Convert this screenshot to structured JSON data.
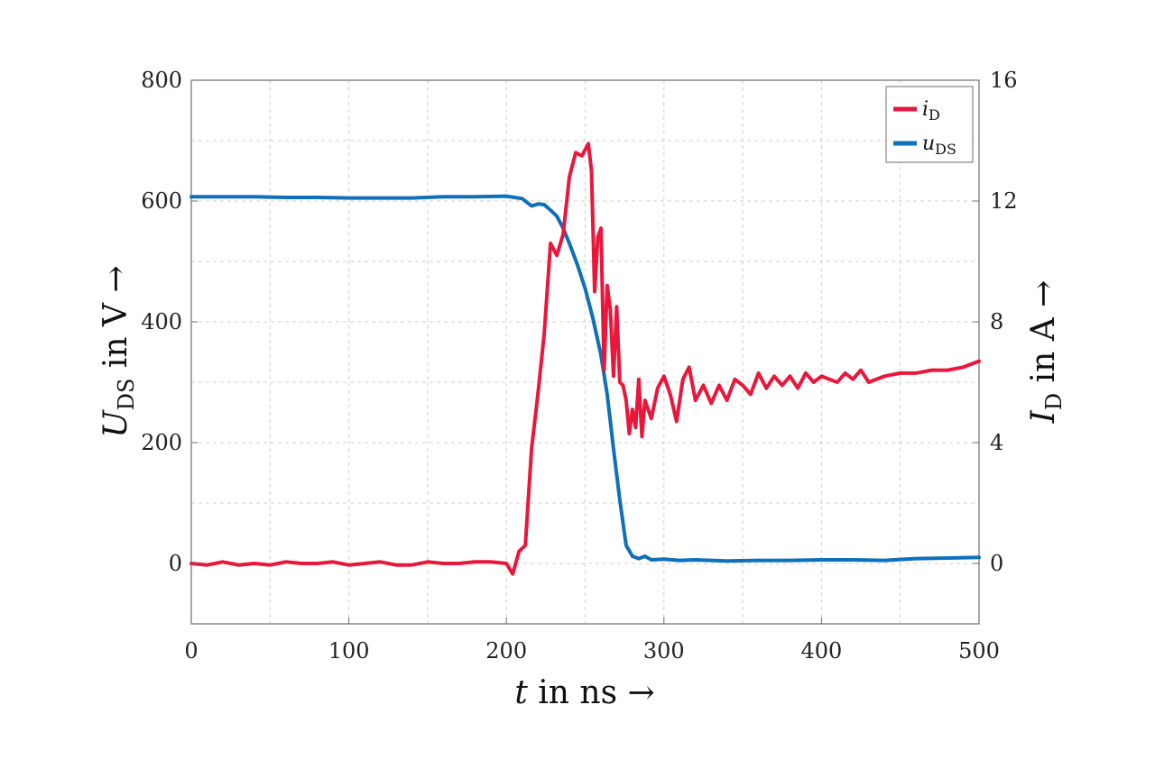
{
  "chart_data": {
    "type": "line",
    "xlabel": {
      "var": "t",
      "rest": " in ns →"
    },
    "ylabel_left": {
      "var": "U",
      "sub": "DS",
      "rest": " in V →"
    },
    "ylabel_right": {
      "var": "I",
      "sub": "D",
      "rest": " in A →"
    },
    "xlim": [
      0,
      500
    ],
    "ylim_left": [
      -100,
      800
    ],
    "ylim_right": [
      -2,
      16
    ],
    "x_ticks": [
      "0",
      "100",
      "200",
      "300",
      "400",
      "500"
    ],
    "y_left_ticks": [
      "0",
      "200",
      "400",
      "600",
      "800"
    ],
    "y_right_ticks": [
      "0",
      "4",
      "8",
      "12",
      "16"
    ],
    "grid": true,
    "legend_placement": "top-right",
    "series": [
      {
        "name": "i",
        "name_sub": "D",
        "axis": "right",
        "color": "#e8173c",
        "points": [
          [
            0,
            0.0
          ],
          [
            10,
            -0.05
          ],
          [
            20,
            0.05
          ],
          [
            30,
            -0.05
          ],
          [
            40,
            0.0
          ],
          [
            50,
            -0.05
          ],
          [
            60,
            0.05
          ],
          [
            70,
            0.0
          ],
          [
            80,
            0.0
          ],
          [
            90,
            0.05
          ],
          [
            100,
            -0.05
          ],
          [
            110,
            0.0
          ],
          [
            120,
            0.05
          ],
          [
            130,
            -0.05
          ],
          [
            140,
            -0.05
          ],
          [
            150,
            0.05
          ],
          [
            160,
            0.0
          ],
          [
            170,
            0.0
          ],
          [
            180,
            0.05
          ],
          [
            190,
            0.05
          ],
          [
            200,
            0.0
          ],
          [
            204,
            -0.35
          ],
          [
            208,
            0.4
          ],
          [
            212,
            0.6
          ],
          [
            216,
            3.8
          ],
          [
            220,
            5.6
          ],
          [
            224,
            7.6
          ],
          [
            228,
            10.6
          ],
          [
            232,
            10.2
          ],
          [
            236,
            10.9
          ],
          [
            240,
            12.8
          ],
          [
            244,
            13.6
          ],
          [
            248,
            13.5
          ],
          [
            252,
            13.9
          ],
          [
            254,
            13.0
          ],
          [
            256,
            9.0
          ],
          [
            258,
            10.8
          ],
          [
            260,
            11.1
          ],
          [
            262,
            6.4
          ],
          [
            264,
            9.2
          ],
          [
            266,
            8.4
          ],
          [
            268,
            6.2
          ],
          [
            270,
            8.5
          ],
          [
            272,
            6.0
          ],
          [
            274,
            5.9
          ],
          [
            276,
            5.4
          ],
          [
            278,
            4.3
          ],
          [
            280,
            5.1
          ],
          [
            282,
            4.5
          ],
          [
            284,
            6.1
          ],
          [
            286,
            4.2
          ],
          [
            288,
            5.4
          ],
          [
            292,
            4.8
          ],
          [
            296,
            5.8
          ],
          [
            300,
            6.2
          ],
          [
            304,
            5.6
          ],
          [
            308,
            4.7
          ],
          [
            312,
            6.1
          ],
          [
            316,
            6.5
          ],
          [
            320,
            5.4
          ],
          [
            325,
            5.9
          ],
          [
            330,
            5.3
          ],
          [
            335,
            5.9
          ],
          [
            340,
            5.4
          ],
          [
            345,
            6.1
          ],
          [
            350,
            5.9
          ],
          [
            355,
            5.6
          ],
          [
            360,
            6.3
          ],
          [
            365,
            5.8
          ],
          [
            370,
            6.2
          ],
          [
            375,
            5.9
          ],
          [
            380,
            6.2
          ],
          [
            385,
            5.8
          ],
          [
            390,
            6.3
          ],
          [
            395,
            6.0
          ],
          [
            400,
            6.2
          ],
          [
            405,
            6.1
          ],
          [
            410,
            6.0
          ],
          [
            415,
            6.3
          ],
          [
            420,
            6.1
          ],
          [
            425,
            6.4
          ],
          [
            430,
            6.0
          ],
          [
            440,
            6.2
          ],
          [
            450,
            6.3
          ],
          [
            460,
            6.3
          ],
          [
            470,
            6.4
          ],
          [
            480,
            6.4
          ],
          [
            490,
            6.5
          ],
          [
            500,
            6.7
          ]
        ]
      },
      {
        "name": "u",
        "name_sub": "DS",
        "axis": "left",
        "color": "#0f6fb8",
        "points": [
          [
            0,
            607
          ],
          [
            20,
            607
          ],
          [
            40,
            607
          ],
          [
            60,
            606
          ],
          [
            80,
            606
          ],
          [
            100,
            605
          ],
          [
            120,
            605
          ],
          [
            140,
            605
          ],
          [
            160,
            607
          ],
          [
            180,
            607
          ],
          [
            200,
            608
          ],
          [
            210,
            604
          ],
          [
            216,
            592
          ],
          [
            220,
            595
          ],
          [
            224,
            594
          ],
          [
            228,
            585
          ],
          [
            232,
            575
          ],
          [
            236,
            555
          ],
          [
            240,
            530
          ],
          [
            245,
            495
          ],
          [
            250,
            455
          ],
          [
            255,
            405
          ],
          [
            260,
            345
          ],
          [
            264,
            280
          ],
          [
            268,
            190
          ],
          [
            272,
            105
          ],
          [
            276,
            30
          ],
          [
            280,
            12
          ],
          [
            284,
            8
          ],
          [
            288,
            12
          ],
          [
            292,
            6
          ],
          [
            300,
            7
          ],
          [
            310,
            5
          ],
          [
            320,
            6
          ],
          [
            340,
            4
          ],
          [
            360,
            5
          ],
          [
            380,
            5
          ],
          [
            400,
            6
          ],
          [
            420,
            6
          ],
          [
            440,
            5
          ],
          [
            460,
            8
          ],
          [
            480,
            9
          ],
          [
            500,
            10
          ]
        ]
      }
    ]
  }
}
